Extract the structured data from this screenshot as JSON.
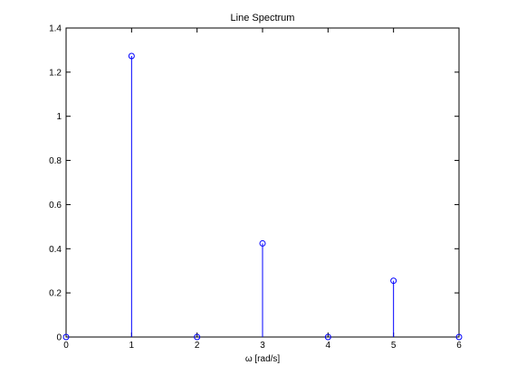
{
  "chart_data": {
    "type": "stem",
    "title": "Line Spectrum",
    "xlabel": "ω [rad/s]",
    "ylabel": "",
    "xlim": [
      0,
      6
    ],
    "ylim": [
      0,
      1.4
    ],
    "xticks": [
      0,
      1,
      2,
      3,
      4,
      5,
      6
    ],
    "yticks": [
      0,
      0.2,
      0.4,
      0.6,
      0.8,
      1,
      1.2,
      1.4
    ],
    "xtick_labels": [
      "0",
      "1",
      "2",
      "3",
      "4",
      "5",
      "6"
    ],
    "ytick_labels": [
      "0",
      "0.2",
      "0.4",
      "0.6",
      "0.8",
      "1",
      "1.2",
      "1.4"
    ],
    "grid": false,
    "series": [
      {
        "x": [
          0,
          1,
          2,
          3,
          4,
          5,
          6
        ],
        "y": [
          0,
          1.273,
          0,
          0.424,
          0,
          0.255,
          0
        ],
        "color": "#0000ff",
        "marker": "circle"
      }
    ]
  }
}
